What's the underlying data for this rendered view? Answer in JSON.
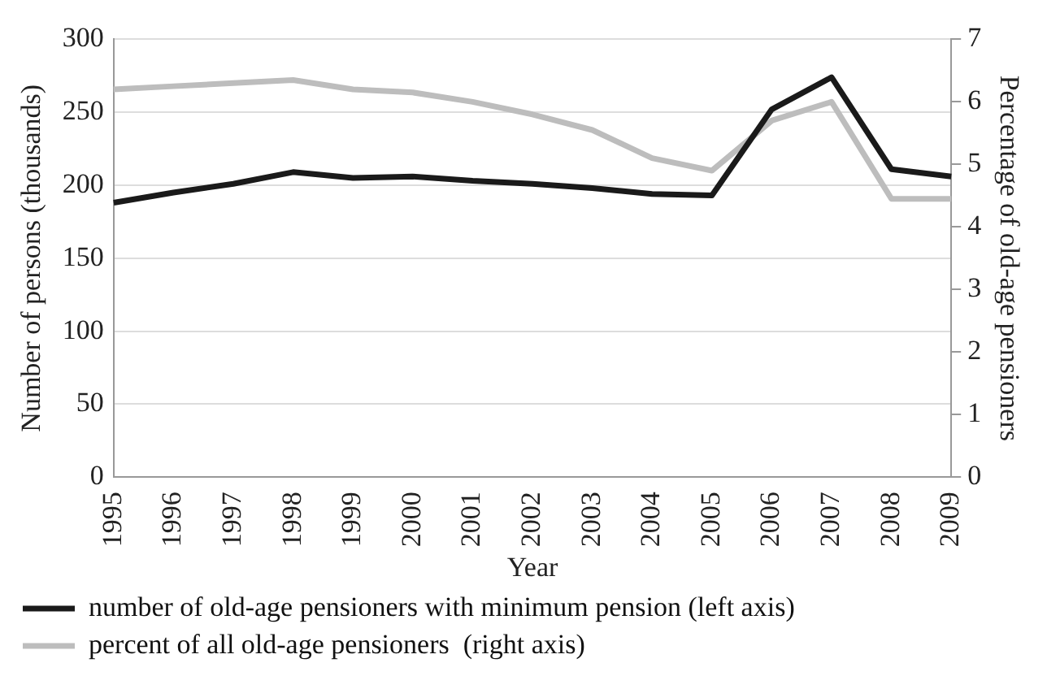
{
  "chart_data": {
    "type": "line",
    "xlabel": "Year",
    "ylabel": "Number of persons (thousands)",
    "y2label": "Percentage of old-age pensioners",
    "categories": [
      "1995",
      "1996",
      "1997",
      "1998",
      "1999",
      "2000",
      "2001",
      "2002",
      "2003",
      "2004",
      "2005",
      "2006",
      "2007",
      "2008",
      "2009"
    ],
    "series": [
      {
        "name": "number of old-age pensioners with minimum pension (left axis)",
        "color": "#1a1a1a",
        "values": [
          188,
          195,
          201,
          209,
          205,
          206,
          203,
          201,
          198,
          194,
          193,
          252,
          274,
          211,
          206
        ]
      },
      {
        "name": "percent of all old-age pensioners  (right axis)",
        "color": "#bdbdbd",
        "axis": "y2",
        "values": [
          6.2,
          6.25,
          6.3,
          6.35,
          6.2,
          6.15,
          6.0,
          5.8,
          5.55,
          5.1,
          4.9,
          5.7,
          6.0,
          4.45,
          4.45
        ]
      }
    ],
    "ylim": [
      0,
      300
    ],
    "yticks": [
      0,
      50,
      100,
      150,
      200,
      250,
      300
    ],
    "y2lim": [
      0,
      7
    ],
    "y2ticks": [
      0,
      1,
      2,
      3,
      4,
      5,
      6,
      7
    ],
    "grid": "y",
    "legend": "bottom",
    "marker": "none",
    "line_style": "solid"
  }
}
